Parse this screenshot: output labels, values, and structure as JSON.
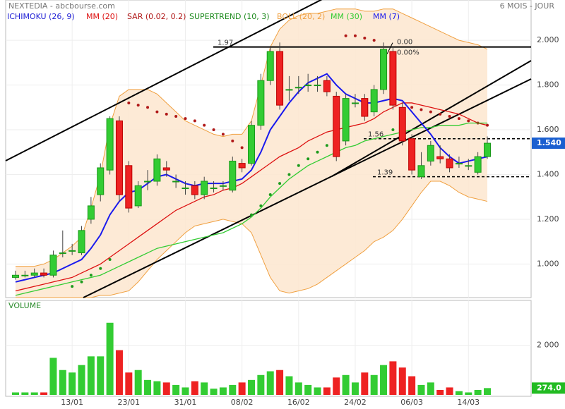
{
  "chart_data": {
    "type": "candlestick",
    "title": "NEXTEDIA - abcbourse.com",
    "period": "6 MOIS - JOUR",
    "volume_title": "VOLUME",
    "categories": [
      null,
      null,
      null,
      null,
      null,
      null,
      "13/01",
      null,
      null,
      null,
      null,
      null,
      "23/01",
      null,
      null,
      null,
      null,
      null,
      "31/01",
      null,
      null,
      null,
      null,
      null,
      "08/02",
      null,
      null,
      null,
      null,
      null,
      "16/02",
      null,
      null,
      null,
      null,
      null,
      "24/02",
      null,
      null,
      null,
      null,
      null,
      "06/03",
      null,
      null,
      null,
      null,
      null,
      "14/03",
      null,
      null
    ],
    "open": [
      0.94,
      0.95,
      0.95,
      0.96,
      0.95,
      1.05,
      1.06,
      1.05,
      1.2,
      1.31,
      1.42,
      1.64,
      1.44,
      1.26,
      1.37,
      1.37,
      1.43,
      1.37,
      1.34,
      1.35,
      1.31,
      1.34,
      1.35,
      1.33,
      1.45,
      1.45,
      1.62,
      1.82,
      1.95,
      1.78,
      1.79,
      1.8,
      1.8,
      1.82,
      1.75,
      1.55,
      1.72,
      1.74,
      1.68,
      1.78,
      1.95,
      1.7,
      1.56,
      1.39,
      1.46,
      1.48,
      1.47,
      1.45,
      1.44,
      1.41,
      1.48
    ],
    "high": [
      0.97,
      0.97,
      0.98,
      0.98,
      1.06,
      1.15,
      1.09,
      1.17,
      1.3,
      1.45,
      1.66,
      1.66,
      1.46,
      1.37,
      1.42,
      1.49,
      1.46,
      1.4,
      1.37,
      1.37,
      1.39,
      1.37,
      1.37,
      1.48,
      1.47,
      1.64,
      1.85,
      1.97,
      1.99,
      1.84,
      1.84,
      1.85,
      1.84,
      1.84,
      1.77,
      1.76,
      1.76,
      1.76,
      1.8,
      1.99,
      1.97,
      1.72,
      1.58,
      1.5,
      1.55,
      1.53,
      1.49,
      1.48,
      1.47,
      1.5,
      1.57
    ],
    "low": [
      0.93,
      0.94,
      0.94,
      0.94,
      0.94,
      1.03,
      1.04,
      1.04,
      1.18,
      1.28,
      1.4,
      1.28,
      1.23,
      1.25,
      1.33,
      1.35,
      1.39,
      1.34,
      1.31,
      1.29,
      1.29,
      1.32,
      1.33,
      1.32,
      1.41,
      1.44,
      1.6,
      1.8,
      1.69,
      1.73,
      1.76,
      1.77,
      1.77,
      1.75,
      1.46,
      1.53,
      1.7,
      1.64,
      1.66,
      1.76,
      1.69,
      1.53,
      1.4,
      1.38,
      1.44,
      1.45,
      1.41,
      1.43,
      1.42,
      1.4,
      1.47
    ],
    "close": [
      0.95,
      0.95,
      0.96,
      0.95,
      1.04,
      1.05,
      1.06,
      1.15,
      1.26,
      1.43,
      1.65,
      1.31,
      1.25,
      1.35,
      1.37,
      1.47,
      1.42,
      1.37,
      1.34,
      1.31,
      1.37,
      1.34,
      1.35,
      1.46,
      1.43,
      1.62,
      1.82,
      1.95,
      1.71,
      1.78,
      1.79,
      1.8,
      1.8,
      1.77,
      1.48,
      1.74,
      1.72,
      1.66,
      1.78,
      1.96,
      1.71,
      1.55,
      1.42,
      1.44,
      1.53,
      1.47,
      1.43,
      1.45,
      1.44,
      1.48,
      1.54
    ],
    "volume": [
      100,
      100,
      100,
      100,
      1490,
      1000,
      900,
      1200,
      1550,
      1550,
      2900,
      1800,
      900,
      1000,
      600,
      550,
      500,
      400,
      300,
      550,
      500,
      250,
      300,
      400,
      500,
      600,
      800,
      950,
      1000,
      750,
      500,
      400,
      300,
      300,
      700,
      800,
      500,
      900,
      800,
      1200,
      1350,
      1100,
      750,
      400,
      500,
      200,
      300,
      150,
      100,
      200,
      274
    ],
    "last_price": {
      "value": 1.54,
      "label": "1.540"
    },
    "last_volume_label": "274.0",
    "series": [
      {
        "name": "ICHIMOKU (26, 9)",
        "color": "#2323d6"
      },
      {
        "name": "MM (20)",
        "color": "#dd1111",
        "values": [
          0.88,
          0.89,
          0.9,
          0.91,
          0.92,
          0.93,
          0.94,
          0.96,
          0.98,
          1.0,
          1.03,
          1.06,
          1.09,
          1.12,
          1.15,
          1.18,
          1.21,
          1.24,
          1.26,
          1.28,
          1.3,
          1.31,
          1.33,
          1.34,
          1.36,
          1.39,
          1.42,
          1.45,
          1.48,
          1.5,
          1.52,
          1.55,
          1.57,
          1.59,
          1.6,
          1.61,
          1.62,
          1.63,
          1.65,
          1.68,
          1.7,
          1.72,
          1.72,
          1.71,
          1.7,
          1.69,
          1.68,
          1.67,
          1.65,
          1.63,
          1.62
        ]
      },
      {
        "name": "SAR (0.02, 0.2)",
        "color": "#b01818",
        "values": [
          null,
          null,
          null,
          null,
          null,
          null,
          0.9,
          0.92,
          0.95,
          0.98,
          1.02,
          null,
          1.72,
          1.71,
          1.7,
          1.68,
          1.67,
          1.66,
          1.65,
          1.64,
          1.62,
          1.6,
          1.58,
          1.55,
          1.52,
          1.22,
          1.26,
          1.31,
          1.36,
          1.4,
          1.44,
          1.47,
          1.5,
          1.53,
          null,
          2.02,
          2.02,
          2.01,
          2.0,
          null,
          1.6,
          null,
          1.7,
          1.69,
          1.68,
          1.67,
          1.66,
          1.65,
          1.64,
          1.63,
          1.62
        ]
      },
      {
        "name": "SUPERTREND (10, 3)",
        "color": "#1c8a1c"
      },
      {
        "name": "BOLL (20, 2)",
        "color": "#f0a040",
        "upper": [
          0.99,
          0.99,
          0.99,
          1.0,
          1.02,
          1.05,
          1.08,
          1.12,
          1.25,
          1.4,
          1.62,
          1.75,
          1.78,
          1.78,
          1.78,
          1.76,
          1.72,
          1.68,
          1.64,
          1.62,
          1.6,
          1.58,
          1.57,
          1.58,
          1.58,
          1.64,
          1.8,
          1.97,
          2.05,
          2.09,
          2.11,
          2.12,
          2.12,
          2.13,
          2.14,
          2.14,
          2.14,
          2.13,
          2.13,
          2.14,
          2.14,
          2.12,
          2.1,
          2.08,
          2.06,
          2.04,
          2.02,
          2.0,
          1.99,
          1.98,
          1.96
        ],
        "lower": [
          0.85,
          0.85,
          0.85,
          0.85,
          0.85,
          0.85,
          0.85,
          0.85,
          0.85,
          0.86,
          0.86,
          0.87,
          0.88,
          0.92,
          0.97,
          1.02,
          1.06,
          1.1,
          1.14,
          1.17,
          1.18,
          1.19,
          1.2,
          1.19,
          1.18,
          1.14,
          1.04,
          0.94,
          0.88,
          0.87,
          0.88,
          0.89,
          0.91,
          0.94,
          0.97,
          1.0,
          1.03,
          1.06,
          1.1,
          1.12,
          1.15,
          1.2,
          1.26,
          1.32,
          1.37,
          1.37,
          1.35,
          1.32,
          1.3,
          1.29,
          1.28
        ]
      },
      {
        "name": "MM (30)",
        "color": "#33cc33",
        "values": [
          0.86,
          0.87,
          0.88,
          0.89,
          0.9,
          0.91,
          0.92,
          0.93,
          0.94,
          0.95,
          0.97,
          0.99,
          1.01,
          1.03,
          1.05,
          1.07,
          1.08,
          1.09,
          1.1,
          1.11,
          1.12,
          1.13,
          1.14,
          1.16,
          1.18,
          1.21,
          1.25,
          1.3,
          1.34,
          1.38,
          1.41,
          1.44,
          1.46,
          1.48,
          1.5,
          1.52,
          1.53,
          1.55,
          1.56,
          1.57,
          1.58,
          1.59,
          1.6,
          1.61,
          1.61,
          1.62,
          1.62,
          1.62,
          1.63,
          1.63,
          1.63
        ]
      },
      {
        "name": "MM (7)",
        "color": "#1a1aee",
        "values": [
          0.92,
          0.93,
          0.94,
          0.95,
          0.96,
          0.98,
          1.0,
          1.02,
          1.07,
          1.13,
          1.22,
          1.28,
          1.32,
          1.33,
          1.36,
          1.39,
          1.4,
          1.38,
          1.36,
          1.35,
          1.36,
          1.36,
          1.36,
          1.37,
          1.38,
          1.42,
          1.5,
          1.6,
          1.66,
          1.72,
          1.77,
          1.81,
          1.83,
          1.85,
          1.8,
          1.76,
          1.74,
          1.72,
          1.72,
          1.73,
          1.74,
          1.73,
          1.68,
          1.63,
          1.58,
          1.52,
          1.48,
          1.45,
          1.46,
          1.47,
          1.48
        ]
      }
    ],
    "hlines": [
      {
        "value": 1.97,
        "label": "1.97"
      },
      {
        "value": 1.56,
        "label": "1.56"
      },
      {
        "value": 1.39,
        "label": "1.39"
      }
    ],
    "annotations": [
      "0.00",
      "0.00%"
    ],
    "ylim": [
      0.85,
      2.18
    ],
    "yticks": [
      {
        "value": 1.0,
        "label": "1.000"
      },
      {
        "value": 1.2,
        "label": "1.200"
      },
      {
        "value": 1.4,
        "label": "1.400"
      },
      {
        "value": 1.6,
        "label": "1.600"
      },
      {
        "value": 1.8,
        "label": "1.800"
      },
      {
        "value": 2.0,
        "label": "2.000"
      }
    ],
    "y2lim": [
      0,
      3800
    ],
    "y2ticks": [
      {
        "value": 2000,
        "label": "2 000"
      }
    ],
    "up_color": "#33cc33",
    "down_color": "#ee2222",
    "grid": true
  }
}
